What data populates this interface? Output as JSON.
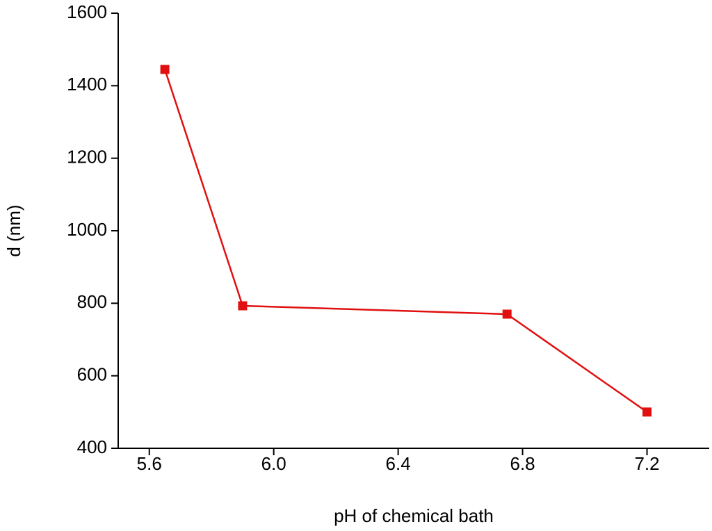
{
  "chart_data": {
    "type": "line",
    "x_label": "pH of chemical bath",
    "y_label": "d (nm)",
    "x": [
      5.65,
      5.9,
      6.75,
      7.2
    ],
    "series": [
      {
        "color": "#e01010",
        "values": [
          1445,
          793,
          770,
          500
        ]
      }
    ],
    "xlim": [
      5.5,
      7.4
    ],
    "xticks": [
      {
        "value": 5.6,
        "label": "5.6"
      },
      {
        "value": 6.0,
        "label": "6.0"
      },
      {
        "value": 6.4,
        "label": "6.4"
      },
      {
        "value": 6.8,
        "label": "6.8"
      },
      {
        "value": 7.2,
        "label": "7.2"
      }
    ],
    "ylim": [
      400,
      1600
    ],
    "yticks": [
      400,
      600,
      800,
      1000,
      1200,
      1400,
      1600
    ],
    "grid": false
  }
}
